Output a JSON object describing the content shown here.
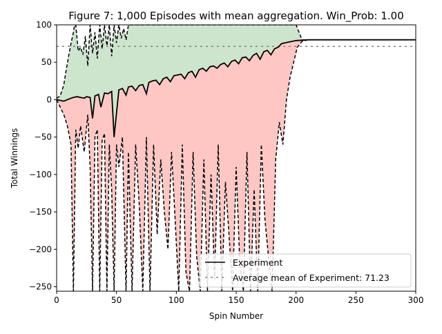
{
  "chart_data": {
    "type": "line",
    "title": "Figure 7: 1,000 Episodes with mean aggregation. Win_Prob: 1.00",
    "xlabel": "Spin Number",
    "ylabel": "Total Winnings",
    "xlim": [
      0,
      300
    ],
    "ylim": [
      -256,
      100
    ],
    "xticks": [
      0,
      50,
      100,
      150,
      200,
      250,
      300
    ],
    "yticks": [
      100,
      50,
      0,
      -50,
      -100,
      -150,
      -200,
      -250
    ],
    "grid": false,
    "legend_position": "bottom-right",
    "legend": [
      {
        "label": "Experiment",
        "style": "solid",
        "color": "#000000"
      },
      {
        "label": "Average mean of Experiment: 71.23",
        "style": "dashed",
        "color": "#808080"
      }
    ],
    "colors": {
      "upper_band_fill": "#cce5cc",
      "lower_band_fill": "#ffc7c3",
      "mean_line": "#000000",
      "bound_lines": "#000000",
      "average_line": "#808080"
    },
    "average_mean": 71.23,
    "series": [
      {
        "name": "Experiment",
        "role": "mean",
        "x": [
          0,
          3,
          6,
          9,
          12,
          14,
          17,
          20,
          23,
          25,
          28,
          30,
          32,
          35,
          37,
          40,
          43,
          46,
          48,
          52,
          55,
          58,
          60,
          63,
          66,
          69,
          72,
          75,
          77,
          80,
          83,
          86,
          89,
          92,
          95,
          98,
          101,
          104,
          107,
          110,
          113,
          116,
          119,
          122,
          125,
          128,
          131,
          134,
          137,
          140,
          143,
          146,
          149,
          152,
          155,
          158,
          161,
          164,
          167,
          170,
          173,
          176,
          179,
          182,
          185,
          188,
          191,
          194,
          197,
          200,
          210,
          230,
          260,
          300
        ],
        "y": [
          0,
          -1,
          -2,
          0,
          2,
          3,
          4,
          3,
          2,
          4,
          3,
          -25,
          5,
          7,
          -10,
          9,
          8,
          11,
          -50,
          13,
          15,
          6,
          17,
          18,
          12,
          19,
          20,
          8,
          23,
          25,
          26,
          20,
          28,
          30,
          24,
          32,
          33,
          34,
          28,
          36,
          38,
          30,
          40,
          42,
          38,
          44,
          45,
          42,
          47,
          49,
          44,
          51,
          53,
          48,
          56,
          57,
          52,
          59,
          62,
          54,
          64,
          66,
          60,
          68,
          70,
          75,
          76,
          77,
          78,
          79,
          80,
          80,
          80,
          80
        ]
      },
      {
        "name": "",
        "role": "upper_bound",
        "x": [
          0,
          3,
          6,
          8,
          10,
          12,
          14,
          15,
          16,
          18,
          20,
          22,
          24,
          26,
          28,
          30,
          32,
          34,
          36,
          38,
          40,
          42,
          44,
          46,
          48,
          50,
          52,
          54,
          56,
          58,
          60,
          65,
          70,
          75,
          80,
          85,
          90,
          95,
          100,
          105,
          110,
          115,
          120,
          125,
          130,
          135,
          140,
          145,
          150,
          155,
          160,
          165,
          170,
          175,
          180,
          185,
          190,
          195,
          200,
          205,
          210
        ],
        "y": [
          2,
          5,
          20,
          40,
          58,
          75,
          90,
          100,
          100,
          65,
          70,
          60,
          85,
          45,
          100,
          62,
          90,
          55,
          100,
          68,
          100,
          72,
          100,
          58,
          100,
          76,
          100,
          82,
          95,
          80,
          100,
          100,
          100,
          100,
          100,
          100,
          100,
          100,
          100,
          100,
          100,
          100,
          100,
          100,
          100,
          100,
          100,
          100,
          100,
          100,
          100,
          100,
          100,
          100,
          100,
          100,
          100,
          100,
          100,
          80,
          80
        ]
      },
      {
        "name": "",
        "role": "lower_bound",
        "x": [
          0,
          3,
          6,
          9,
          12,
          14,
          16,
          18,
          20,
          23,
          26,
          28,
          30,
          32,
          34,
          36,
          38,
          40,
          42,
          44,
          46,
          48,
          50,
          52,
          55,
          58,
          60,
          63,
          66,
          69,
          72,
          75,
          78,
          81,
          84,
          87,
          90,
          93,
          96,
          99,
          102,
          105,
          108,
          111,
          114,
          117,
          120,
          123,
          126,
          129,
          132,
          135,
          138,
          141,
          144,
          147,
          150,
          153,
          156,
          159,
          162,
          165,
          168,
          171,
          174,
          177,
          180,
          183,
          186,
          189,
          192,
          195,
          198,
          201,
          205,
          210
        ],
        "y": [
          0,
          -10,
          -20,
          -35,
          -60,
          -256,
          -40,
          -65,
          -35,
          -70,
          -20,
          -90,
          -256,
          -50,
          -40,
          -256,
          -55,
          -45,
          -256,
          -60,
          -120,
          -256,
          -60,
          -90,
          -50,
          -256,
          -70,
          -256,
          -60,
          -140,
          -256,
          -50,
          -256,
          -60,
          -180,
          -80,
          -150,
          -200,
          -70,
          -160,
          -256,
          -60,
          -230,
          -256,
          -70,
          -210,
          -256,
          -80,
          -256,
          -100,
          -240,
          -60,
          -256,
          -110,
          -180,
          -256,
          -90,
          -220,
          -256,
          -70,
          -256,
          -120,
          -256,
          -60,
          -160,
          -210,
          -256,
          -80,
          -30,
          -60,
          0,
          30,
          50,
          70,
          78,
          80
        ]
      },
      {
        "name": "Average mean of Experiment: 71.23",
        "role": "average",
        "x": [
          0,
          300
        ],
        "y": [
          71.23,
          71.23
        ]
      }
    ]
  }
}
